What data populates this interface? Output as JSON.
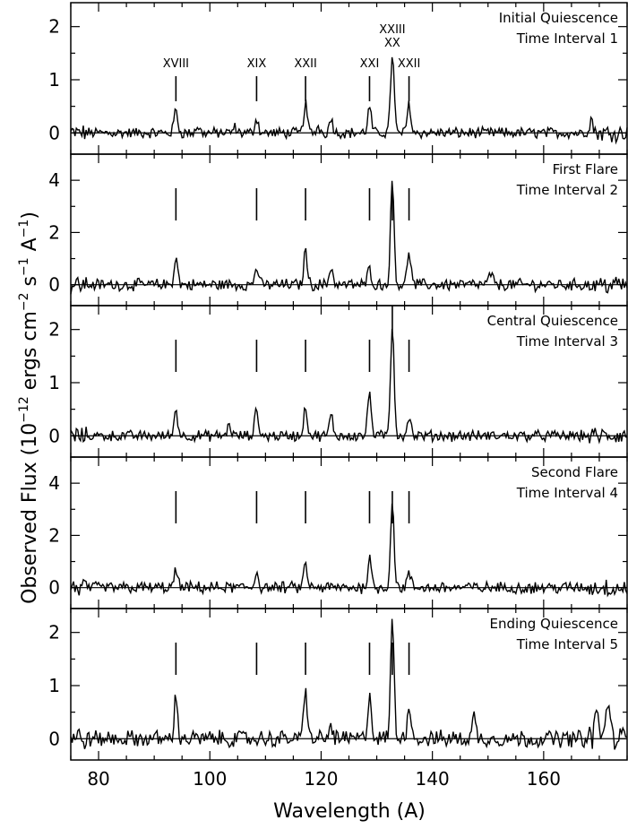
{
  "chart_data": {
    "type": "line",
    "xlabel": "Wavelength (A)",
    "ylabel": "Observed Flux (10^-12 ergs cm^-2 s^-1 A^-1)",
    "ylabel_parts": {
      "main": "Observed Flux (10",
      "exp1": "−12",
      "mid1": " ergs cm",
      "exp2": "−2",
      "mid2": " s",
      "exp3": "−1",
      "mid3": " A",
      "exp4": "−1",
      "end": ")"
    },
    "xlim": [
      75,
      175
    ],
    "xticks": [
      80,
      100,
      120,
      140,
      160
    ],
    "line_markers": [
      93.9,
      108.4,
      117.2,
      128.7,
      132.8,
      135.8
    ],
    "ion_labels": [
      {
        "text": "XVIII",
        "x": 93.9
      },
      {
        "text": "XIX",
        "x": 108.4
      },
      {
        "text": "XXII",
        "x": 117.2
      },
      {
        "text": "XXI",
        "x": 128.7
      },
      {
        "text": "XXIII",
        "x": 132.8
      },
      {
        "text": "XX",
        "x": 132.8
      },
      {
        "text": "XXII",
        "x": 135.8
      }
    ],
    "panels": [
      {
        "label_line1": "Initial Quiescence",
        "label_line2": "Time Interval 1",
        "ylim": [
          -0.4,
          2.45
        ],
        "yticks": [
          0,
          1,
          2
        ],
        "noise": 0.09,
        "peaks": [
          [
            93.9,
            0.45
          ],
          [
            97.8,
            0.12
          ],
          [
            104.5,
            0.1
          ],
          [
            108.4,
            0.28
          ],
          [
            117.2,
            0.55
          ],
          [
            119.5,
            0.12
          ],
          [
            121.8,
            0.28
          ],
          [
            128.7,
            0.48
          ],
          [
            132.8,
            1.5
          ],
          [
            135.8,
            0.55
          ],
          [
            168.5,
            0.28
          ]
        ]
      },
      {
        "label_line1": "First Flare",
        "label_line2": "Time Interval 2",
        "ylim": [
          -0.8,
          5.0
        ],
        "yticks": [
          0,
          2,
          4
        ],
        "noise": 0.2,
        "peaks": [
          [
            93.9,
            1.05
          ],
          [
            108.4,
            0.7
          ],
          [
            117.2,
            1.3
          ],
          [
            121.8,
            0.7
          ],
          [
            128.7,
            0.65
          ],
          [
            132.8,
            3.95
          ],
          [
            135.8,
            1.3
          ],
          [
            150.5,
            0.45
          ]
        ]
      },
      {
        "label_line1": "Central Quiescence",
        "label_line2": "Time Interval 3",
        "ylim": [
          -0.4,
          2.45
        ],
        "yticks": [
          0,
          1,
          2
        ],
        "noise": 0.09,
        "peaks": [
          [
            93.9,
            0.5
          ],
          [
            103.5,
            0.22
          ],
          [
            108.4,
            0.5
          ],
          [
            117.2,
            0.55
          ],
          [
            121.8,
            0.38
          ],
          [
            128.7,
            0.82
          ],
          [
            132.8,
            2.1
          ],
          [
            135.8,
            0.38
          ]
        ]
      },
      {
        "label_line1": "Second Flare",
        "label_line2": "Time Interval 4",
        "ylim": [
          -0.8,
          5.0
        ],
        "yticks": [
          0,
          2,
          4
        ],
        "noise": 0.2,
        "peaks": [
          [
            93.9,
            0.65
          ],
          [
            108.4,
            0.6
          ],
          [
            117.2,
            0.9
          ],
          [
            128.7,
            1.15
          ],
          [
            132.8,
            3.25
          ],
          [
            135.8,
            0.55
          ]
        ]
      },
      {
        "label_line1": "Ending Quiescence",
        "label_line2": "Time Interval 5",
        "ylim": [
          -0.4,
          2.45
        ],
        "yticks": [
          0,
          1,
          2
        ],
        "noise": 0.14,
        "peaks": [
          [
            93.9,
            0.75
          ],
          [
            117.2,
            0.95
          ],
          [
            121.8,
            0.25
          ],
          [
            128.7,
            0.85
          ],
          [
            132.8,
            2.2
          ],
          [
            135.8,
            0.7
          ],
          [
            147.5,
            0.42
          ],
          [
            169.5,
            0.55
          ],
          [
            171.5,
            0.8
          ]
        ]
      }
    ],
    "grid": false,
    "legend": "none"
  }
}
